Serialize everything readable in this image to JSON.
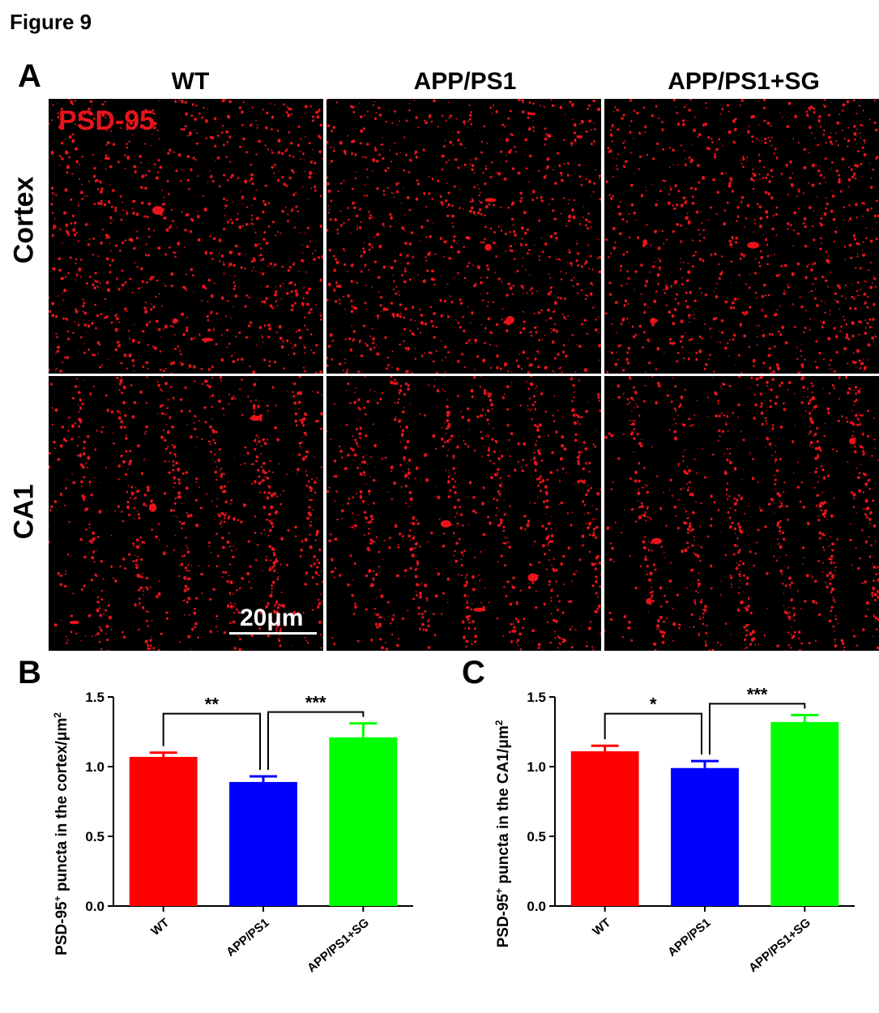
{
  "figure_title": "Figure 9",
  "panels": {
    "a": "A",
    "b": "B",
    "c": "C"
  },
  "micrographs": {
    "stain": "PSD-95",
    "stain_color": "#e8141b",
    "columns": [
      "WT",
      "APP/PS1",
      "APP/PS1+SG"
    ],
    "rows": [
      "Cortex",
      "CA1"
    ],
    "scale_bar": "20μm"
  },
  "chart_data": [
    {
      "type": "bar",
      "panel": "B",
      "categories": [
        "WT",
        "APP/PS1",
        "APP/PS1+SG"
      ],
      "values": [
        1.07,
        0.89,
        1.21
      ],
      "errors": [
        0.03,
        0.04,
        0.1
      ],
      "colors": [
        "#ff0000",
        "#0000ff",
        "#00ff00"
      ],
      "ylabel_pre": "PSD-95",
      "ylabel_sup": "+",
      "ylabel_post": " puncta in the cortex/μm",
      "ylabel_sup2": "2",
      "ylim": [
        0,
        1.5
      ],
      "yticks": [
        "0.0",
        "0.5",
        "1.0",
        "1.5"
      ],
      "significance": [
        {
          "from": 0,
          "to": 1,
          "label": "**"
        },
        {
          "from": 1,
          "to": 2,
          "label": "***"
        }
      ]
    },
    {
      "type": "bar",
      "panel": "C",
      "categories": [
        "WT",
        "APP/PS1",
        "APP/PS1+SG"
      ],
      "values": [
        1.11,
        0.99,
        1.32
      ],
      "errors": [
        0.04,
        0.05,
        0.05
      ],
      "colors": [
        "#ff0000",
        "#0000ff",
        "#00ff00"
      ],
      "ylabel_pre": "PSD-95",
      "ylabel_sup": "+",
      "ylabel_post": " puncta in the CA1/μm",
      "ylabel_sup2": "2",
      "ylim": [
        0,
        1.5
      ],
      "yticks": [
        "0.0",
        "0.5",
        "1.0",
        "1.5"
      ],
      "significance": [
        {
          "from": 0,
          "to": 1,
          "label": "*"
        },
        {
          "from": 1,
          "to": 2,
          "label": "***"
        }
      ]
    }
  ]
}
